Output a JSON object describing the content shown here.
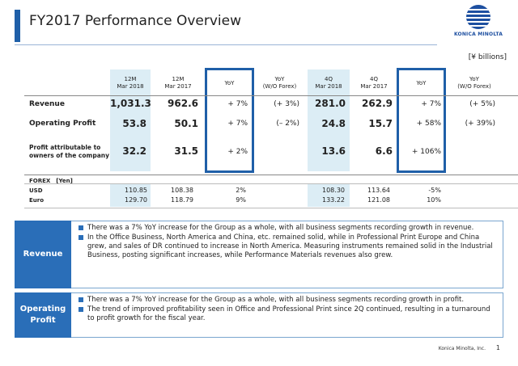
{
  "title": "FY2017 Performance Overview",
  "logo_text": "KONICA MINOLTA",
  "unit": "[¥ billions]",
  "columns": [
    {
      "line1": "12M",
      "line2": "Mar 2018"
    },
    {
      "line1": "12M",
      "line2": "Mar 2017"
    },
    {
      "line1": "YoY",
      "line2": ""
    },
    {
      "line1": "YoY",
      "line2": "(W/O Forex)"
    },
    {
      "line1": "4Q",
      "line2": "Mar 2018"
    },
    {
      "line1": "4Q",
      "line2": "Mar 2017"
    },
    {
      "line1": "YoY",
      "line2": ""
    },
    {
      "line1": "YoY",
      "line2": "(W/O Forex)"
    }
  ],
  "rows": [
    {
      "label": "Revenue",
      "label2": "",
      "values": [
        "1,031.3",
        "962.6",
        "+ 7%",
        "(+ 3%)",
        "281.0",
        "262.9",
        "+ 7%",
        "(+ 5%)"
      ]
    },
    {
      "label": "Operating Profit",
      "label2": "",
      "values": [
        "53.8",
        "50.1",
        "+ 7%",
        "(– 2%)",
        "24.8",
        "15.7",
        "+ 58%",
        "(+ 39%)"
      ]
    },
    {
      "label": "Profit attributable to",
      "label2": "owners of the company",
      "values": [
        "32.2",
        "31.5",
        "+ 2%",
        "",
        "13.6",
        "6.6",
        "+ 106%",
        ""
      ]
    }
  ],
  "forex": {
    "header": "FOREX　[Yen]",
    "rows": [
      {
        "label": "USD",
        "values": [
          "110.85",
          "108.38",
          "2%",
          "108.30",
          "113.64",
          "-5%"
        ]
      },
      {
        "label": "Euro",
        "values": [
          "129.70",
          "118.79",
          "9%",
          "133.22",
          "121.08",
          "10%"
        ]
      }
    ]
  },
  "panels": [
    {
      "label": "Revenue",
      "bullets": [
        "There was a 7% YoY increase for the Group as a whole, with all business segments recording growth in revenue.",
        "In the Office Business, North America and China, etc. remained solid, while in Professional Print Europe and China grew, and sales of DR continued to increase in North America. Measuring instruments remained solid in the Industrial Business, posting significant increases, while Performance Materials revenues also grew."
      ]
    },
    {
      "label": "Operating Profit",
      "bullets": [
        "There was a 7% YoY increase for the Group as a whole, with all business segments recording growth in profit.",
        "The trend of improved profitability seen in Office and Professional Print since 2Q continued, resulting in a turnaround to profit growth for the fiscal year."
      ]
    }
  ],
  "footer": "Konica Minolta, Inc.",
  "page_number": "1",
  "colors": {
    "accent": "#1f5fa8",
    "shade": "#dcedf5",
    "panel_label": "#2a6eb8"
  }
}
